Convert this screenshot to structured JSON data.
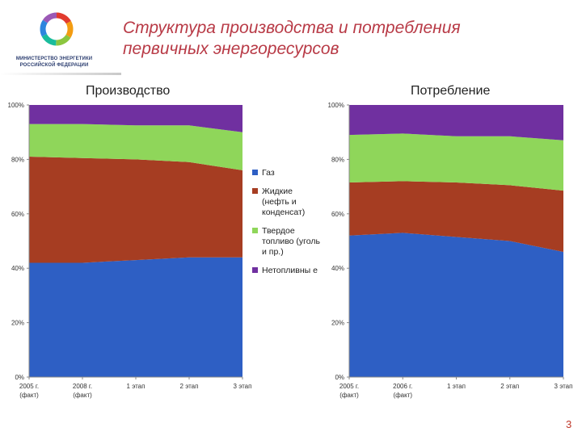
{
  "header": {
    "title_line1": "Структура производства и потребления",
    "title_line2": "первичных энергоресурсов",
    "logo_line1": "МИНИСТЕРСТВО ЭНЕРГЕТИКИ",
    "logo_line2": "РОССИЙСКОЙ ФЕДЕРАЦИИ"
  },
  "page_number": "3",
  "colors": {
    "gas": "#2e5fc4",
    "liquid": "#a63d22",
    "solid": "#8fd65a",
    "nonfuel": "#7030a0",
    "title": "#b83a46"
  },
  "legend": [
    {
      "key": "gas",
      "label": "Газ"
    },
    {
      "key": "liquid",
      "label": "Жидкие (нефть и конденсат)"
    },
    {
      "key": "solid",
      "label": "Твердое топливо (уголь и пр.)"
    },
    {
      "key": "nonfuel",
      "label": "Нетопливны е"
    }
  ],
  "chart_data": [
    {
      "type": "area",
      "stacked": true,
      "title": "Производство",
      "categories": [
        "2005 г. (факт)",
        "2008 г. (факт)",
        "1 этап",
        "2 этап",
        "3 этап"
      ],
      "ylim": [
        0,
        100
      ],
      "yticks": [
        "0%",
        "20%",
        "40%",
        "60%",
        "80%",
        "100%"
      ],
      "grid": false,
      "legend_position": "right",
      "series": [
        {
          "name": "Газ",
          "key": "gas",
          "values": [
            42,
            42,
            43,
            44,
            44
          ]
        },
        {
          "name": "Жидкие (нефть и конденсат)",
          "key": "liquid",
          "values": [
            39,
            38.5,
            37,
            35,
            32
          ]
        },
        {
          "name": "Твердое топливо (уголь и пр.)",
          "key": "solid",
          "values": [
            12,
            12.5,
            12.5,
            13.5,
            14
          ]
        },
        {
          "name": "Нетопливны е",
          "key": "nonfuel",
          "values": [
            7,
            7,
            7.5,
            7.5,
            10
          ]
        }
      ]
    },
    {
      "type": "area",
      "stacked": true,
      "title": "Потребление",
      "categories": [
        "2005 г. (факт)",
        "2006 г. (факт)",
        "1 этап",
        "2 этап",
        "3 этап"
      ],
      "ylim": [
        0,
        100
      ],
      "yticks": [
        "0%",
        "20%",
        "40%",
        "60%",
        "80%",
        "100%"
      ],
      "grid": false,
      "series": [
        {
          "name": "Газ",
          "key": "gas",
          "values": [
            52,
            53,
            51.5,
            50,
            46
          ]
        },
        {
          "name": "Жидкие (нефть и конденсат)",
          "key": "liquid",
          "values": [
            19.5,
            19,
            20,
            20.5,
            22.5
          ]
        },
        {
          "name": "Твердое топливо (уголь и пр.)",
          "key": "solid",
          "values": [
            17.5,
            17.5,
            17,
            18,
            18.5
          ]
        },
        {
          "name": "Нетопливны е",
          "key": "nonfuel",
          "values": [
            11,
            10.5,
            11.5,
            11.5,
            13
          ]
        }
      ]
    }
  ]
}
